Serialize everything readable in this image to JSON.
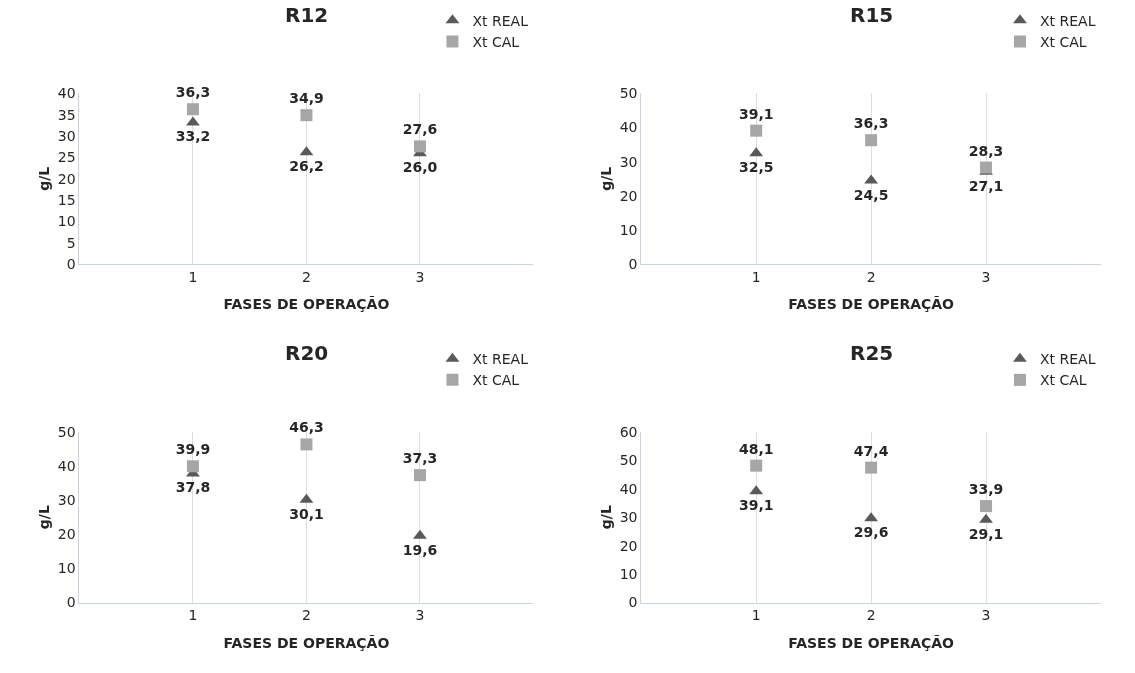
{
  "chart_data": [
    {
      "type": "scatter",
      "title": "R12",
      "xlabel": "FASES DE OPERAÇÃO",
      "ylabel": "g/L",
      "categories": [
        "1",
        "2",
        "3"
      ],
      "ylim": [
        0,
        40
      ],
      "yticks": [
        0,
        5,
        10,
        15,
        20,
        25,
        30,
        35,
        40
      ],
      "grid": "x",
      "legend": "top right",
      "series": [
        {
          "name": "Xt REAL",
          "color": "#595959",
          "marker": "triangle",
          "values": [
            33.2,
            26.2,
            26.0
          ],
          "value_labels": [
            "33,2",
            "26,2",
            "26,0"
          ]
        },
        {
          "name": "Xt CAL",
          "color": "#a6a6a6",
          "marker": "square",
          "values": [
            36.3,
            34.9,
            27.6
          ],
          "value_labels": [
            "36,3",
            "34,9",
            "27,6"
          ]
        }
      ]
    },
    {
      "type": "scatter",
      "title": "R15",
      "xlabel": "FASES DE OPERAÇÃO",
      "ylabel": "g/L",
      "categories": [
        "1",
        "2",
        "3"
      ],
      "ylim": [
        0,
        50
      ],
      "yticks": [
        0,
        10,
        20,
        30,
        40,
        50
      ],
      "grid": "x",
      "legend": "top right",
      "series": [
        {
          "name": "Xt REAL",
          "color": "#595959",
          "marker": "triangle",
          "values": [
            32.5,
            24.5,
            27.1
          ],
          "value_labels": [
            "32,5",
            "24,5",
            "27,1"
          ]
        },
        {
          "name": "Xt CAL",
          "color": "#a6a6a6",
          "marker": "square",
          "values": [
            39.1,
            36.3,
            28.3
          ],
          "value_labels": [
            "39,1",
            "36,3",
            "28,3"
          ]
        }
      ]
    },
    {
      "type": "scatter",
      "title": "R20",
      "xlabel": "FASES DE OPERAÇÃO",
      "ylabel": "g/L",
      "categories": [
        "1",
        "2",
        "3"
      ],
      "ylim": [
        0,
        50
      ],
      "yticks": [
        0,
        10,
        20,
        30,
        40,
        50
      ],
      "grid": "x",
      "legend": "top right",
      "series": [
        {
          "name": "Xt REAL",
          "color": "#595959",
          "marker": "triangle",
          "values": [
            37.8,
            30.1,
            19.6
          ],
          "value_labels": [
            "37,8",
            "30,1",
            "19,6"
          ]
        },
        {
          "name": "Xt CAL",
          "color": "#a6a6a6",
          "marker": "square",
          "values": [
            39.9,
            46.3,
            37.3
          ],
          "value_labels": [
            "39,9",
            "46,3",
            "37,3"
          ]
        }
      ]
    },
    {
      "type": "scatter",
      "title": "R25",
      "xlabel": "FASES DE OPERAÇÃO",
      "ylabel": "g/L",
      "categories": [
        "1",
        "2",
        "3"
      ],
      "ylim": [
        0,
        60
      ],
      "yticks": [
        0,
        10,
        20,
        30,
        40,
        50,
        60
      ],
      "grid": "x",
      "legend": "top right",
      "series": [
        {
          "name": "Xt REAL",
          "color": "#595959",
          "marker": "triangle",
          "values": [
            39.1,
            29.6,
            29.1
          ],
          "value_labels": [
            "39,1",
            "29,6",
            "29,1"
          ]
        },
        {
          "name": "Xt CAL",
          "color": "#a6a6a6",
          "marker": "square",
          "values": [
            48.1,
            47.4,
            33.9
          ],
          "value_labels": [
            "48,1",
            "47,4",
            "33,9"
          ]
        }
      ]
    }
  ]
}
